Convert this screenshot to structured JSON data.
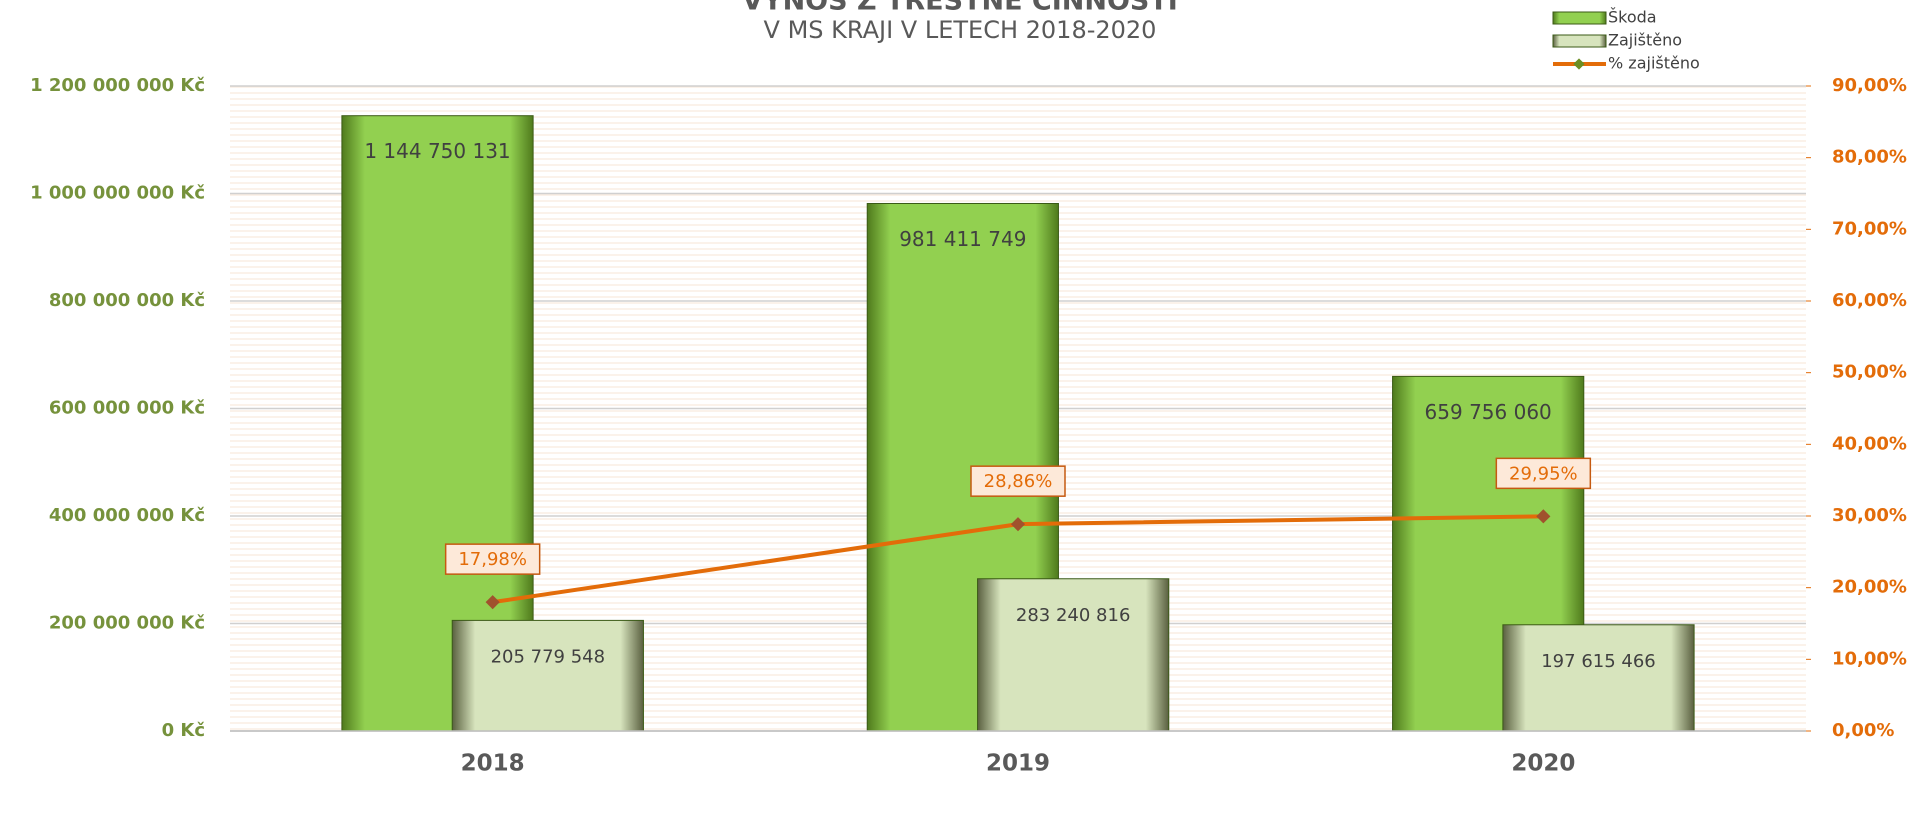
{
  "chart_data": {
    "type": "bar",
    "title": "VÝNOS Z TRESTNÉ ČINNOSTI",
    "subtitle": "V MS KRAJI V LETECH 2018-2020",
    "categories": [
      "2018",
      "2019",
      "2020"
    ],
    "series": [
      {
        "name": "Škoda",
        "color": "#92d050",
        "values": [
          1144750131,
          981411749,
          659756060
        ],
        "value_labels": [
          "1 144 750 131",
          "981 411 749",
          "659 756 060"
        ]
      },
      {
        "name": "Zajištěno",
        "color": "#d7e4bd",
        "values": [
          205779548,
          283240816,
          197615466
        ],
        "value_labels": [
          "205 779 548",
          "283 240 816",
          "197 615 466"
        ]
      },
      {
        "name": "% zajištěno",
        "type": "line",
        "axis": "y2",
        "color": "#e36c09",
        "values": [
          17.98,
          28.86,
          29.95
        ],
        "value_labels": [
          "17,98%",
          "28,86%",
          "29,95%"
        ]
      }
    ],
    "ylim": [
      0,
      1200000000
    ],
    "yticks": [
      {
        "value": 0,
        "label": "0 Kč"
      },
      {
        "value": 200000000,
        "label": "200 000 000 Kč"
      },
      {
        "value": 400000000,
        "label": "400 000 000 Kč"
      },
      {
        "value": 600000000,
        "label": "600 000 000 Kč"
      },
      {
        "value": 800000000,
        "label": "800 000 000 Kč"
      },
      {
        "value": 1000000000,
        "label": "1 000 000 000 Kč"
      },
      {
        "value": 1200000000,
        "label": "1 200 000 000 Kč"
      }
    ],
    "y2lim": [
      0,
      90
    ],
    "y2ticks": [
      {
        "value": 0,
        "label": "0,00%"
      },
      {
        "value": 10,
        "label": "10,00%"
      },
      {
        "value": 20,
        "label": "20,00%"
      },
      {
        "value": 30,
        "label": "30,00%"
      },
      {
        "value": 40,
        "label": "40,00%"
      },
      {
        "value": 50,
        "label": "50,00%"
      },
      {
        "value": 60,
        "label": "60,00%"
      },
      {
        "value": 70,
        "label": "70,00%"
      },
      {
        "value": 80,
        "label": "80,00%"
      },
      {
        "value": 90,
        "label": "90,00%"
      }
    ],
    "grid": true,
    "legend": "top-right"
  }
}
